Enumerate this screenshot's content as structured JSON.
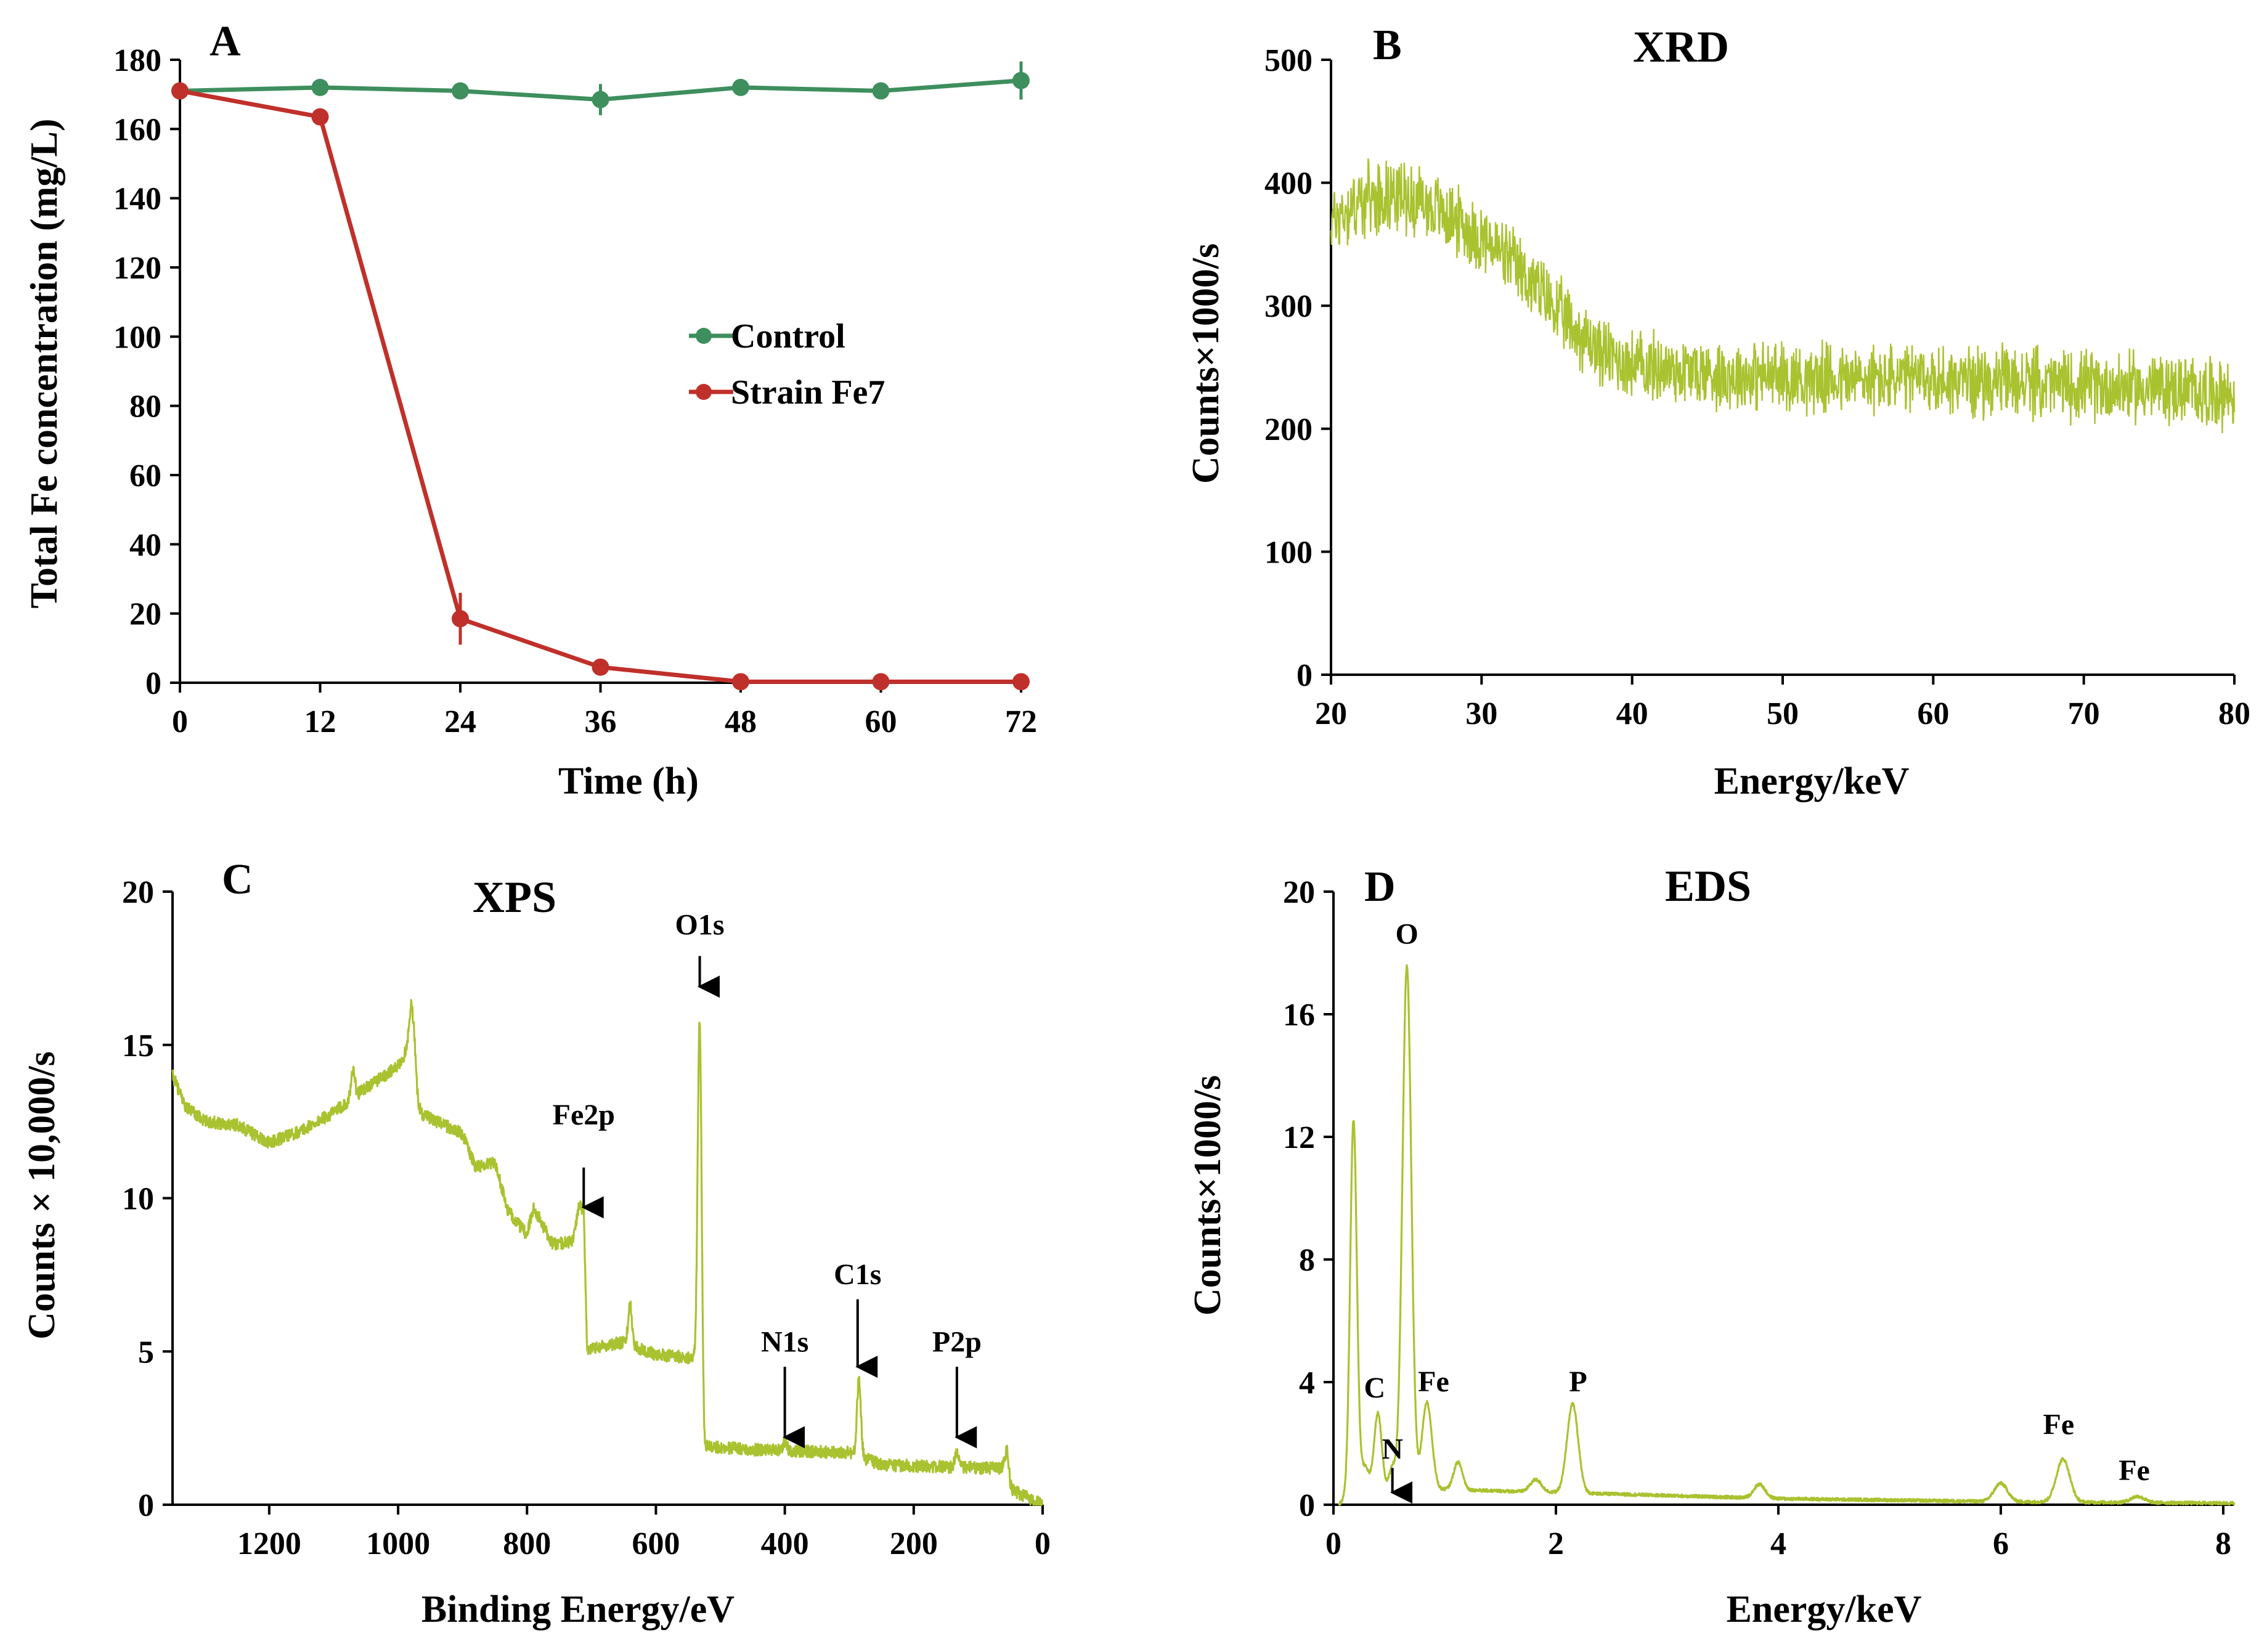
{
  "colors": {
    "control": "#3E8E5E",
    "strain": "#C0302A",
    "spectrum": "#A9C230",
    "axis": "#000000"
  },
  "chart_data": [
    {
      "panel": "A",
      "type": "line",
      "title": "",
      "xlabel": "Time (h)",
      "ylabel": "Total Fe concentration (mg/L)",
      "xlim": [
        0,
        72
      ],
      "ylim": [
        0,
        180
      ],
      "xticks": [
        0,
        12,
        24,
        36,
        48,
        60,
        72
      ],
      "yticks": [
        0,
        20,
        40,
        60,
        80,
        100,
        120,
        140,
        160,
        180
      ],
      "x": [
        0,
        12,
        24,
        36,
        48,
        60,
        72
      ],
      "series": [
        {
          "name": "Control",
          "values": [
            171,
            172,
            171,
            168.5,
            172,
            171,
            174
          ],
          "errors": [
            2,
            2,
            1.5,
            4.5,
            1.5,
            1.5,
            5.5
          ]
        },
        {
          "name": "Strain Fe7",
          "values": [
            171,
            163.5,
            18.5,
            4.5,
            0.3,
            0.3,
            0.3
          ],
          "errors": [
            2,
            1,
            7.5,
            1,
            0.3,
            0.3,
            0.3
          ]
        }
      ],
      "legend": "center-right"
    },
    {
      "panel": "B",
      "type": "line",
      "title": "XRD",
      "xlabel": "Energy/keV",
      "ylabel": "Counts×1000/s",
      "xlim": [
        20,
        80
      ],
      "ylim": [
        0,
        500
      ],
      "xticks": [
        20,
        30,
        40,
        50,
        60,
        70,
        80
      ],
      "yticks": [
        0,
        100,
        200,
        300,
        400,
        500
      ],
      "trend": [
        [
          20,
          370
        ],
        [
          22,
          385
        ],
        [
          24,
          392
        ],
        [
          26,
          385
        ],
        [
          28,
          372
        ],
        [
          30,
          355
        ],
        [
          32,
          335
        ],
        [
          34,
          310
        ],
        [
          36,
          282
        ],
        [
          38,
          262
        ],
        [
          40,
          252
        ],
        [
          45,
          245
        ],
        [
          50,
          242
        ],
        [
          55,
          240
        ],
        [
          60,
          240
        ],
        [
          65,
          238
        ],
        [
          70,
          235
        ],
        [
          75,
          233
        ],
        [
          80,
          228
        ]
      ],
      "noise": 28
    },
    {
      "panel": "C",
      "type": "line",
      "title": "XPS",
      "xlabel": "Binding Energy/eV",
      "ylabel": "Counts × 10,000/s",
      "xlim": [
        1350,
        0
      ],
      "ylim": [
        0,
        20
      ],
      "xticks": [
        1200,
        1000,
        800,
        600,
        400,
        200,
        0
      ],
      "yticks": [
        0,
        5,
        10,
        15,
        20
      ],
      "baseline": [
        [
          1350,
          14.0
        ],
        [
          1330,
          13.0
        ],
        [
          1300,
          12.5
        ],
        [
          1250,
          12.4
        ],
        [
          1200,
          11.8
        ],
        [
          1150,
          12.2
        ],
        [
          1100,
          12.8
        ],
        [
          1050,
          13.6
        ],
        [
          1000,
          14.3
        ],
        [
          980,
          15.0
        ],
        [
          970,
          12.8
        ],
        [
          900,
          12.1
        ],
        [
          880,
          11.0
        ],
        [
          850,
          11.2
        ],
        [
          830,
          9.6
        ],
        [
          800,
          8.8
        ],
        [
          790,
          9.7
        ],
        [
          760,
          8.5
        ],
        [
          720,
          8.6
        ],
        [
          712,
          9.6
        ],
        [
          707,
          5.1
        ],
        [
          650,
          5.3
        ],
        [
          600,
          4.9
        ],
        [
          550,
          4.8
        ],
        [
          535,
          4.7
        ],
        [
          525,
          1.9
        ],
        [
          450,
          1.8
        ],
        [
          300,
          1.7
        ],
        [
          250,
          1.3
        ],
        [
          100,
          1.2
        ],
        [
          60,
          1.2
        ],
        [
          50,
          0.5
        ],
        [
          20,
          0.2
        ],
        [
          0,
          0.0
        ]
      ],
      "peaks": [
        {
          "x": 977,
          "h": 1.6,
          "w": 5
        },
        {
          "x": 1070,
          "h": 0.9,
          "w": 3
        },
        {
          "x": 720,
          "h": 1.0,
          "w": 4
        },
        {
          "x": 640,
          "h": 1.3,
          "w": 3
        },
        {
          "x": 532,
          "h": 11.9,
          "w": 3
        },
        {
          "x": 400,
          "h": 0.3,
          "w": 3
        },
        {
          "x": 285,
          "h": 2.5,
          "w": 3
        },
        {
          "x": 133,
          "h": 0.6,
          "w": 3
        },
        {
          "x": 55,
          "h": 0.9,
          "w": 3
        }
      ],
      "noise": 0.2,
      "annotations": [
        {
          "text": "O1s",
          "x": 532,
          "arrow_from": 17.9,
          "arrow_to": 16.9,
          "text_y": 18.6
        },
        {
          "text": "Fe2p",
          "x": 712,
          "arrow_from": 11.0,
          "arrow_to": 9.7,
          "text_y": 12.4
        },
        {
          "text": "C1s",
          "x": 287,
          "arrow_from": 6.7,
          "arrow_to": 4.5,
          "text_y": 7.2
        },
        {
          "text": "N1s",
          "x": 400,
          "arrow_from": 4.5,
          "arrow_to": 2.2,
          "text_y": 5.0
        },
        {
          "text": "P2p",
          "x": 133,
          "arrow_from": 4.5,
          "arrow_to": 2.2,
          "text_y": 5.0
        }
      ]
    },
    {
      "panel": "D",
      "type": "line",
      "title": "EDS",
      "xlabel": "Energy/keV",
      "ylabel": "Counts×1000/s",
      "xlim": [
        0,
        8.1
      ],
      "ylim": [
        0,
        20
      ],
      "xticks": [
        0,
        2,
        4,
        6,
        8
      ],
      "yticks": [
        0,
        4,
        8,
        12,
        16,
        20
      ],
      "baseline": [
        [
          0.05,
          0
        ],
        [
          0.1,
          0.2
        ],
        [
          0.5,
          0.3
        ],
        [
          1.0,
          0.5
        ],
        [
          1.5,
          0.45
        ],
        [
          2.0,
          0.4
        ],
        [
          3.0,
          0.3
        ],
        [
          4.0,
          0.2
        ],
        [
          6.0,
          0.1
        ],
        [
          8.1,
          0.05
        ]
      ],
      "peaks": [
        {
          "x": 0.18,
          "h": 12.3,
          "w": 0.03
        },
        {
          "x": 0.28,
          "h": 1.0,
          "w": 0.04
        },
        {
          "x": 0.4,
          "h": 2.7,
          "w": 0.035
        },
        {
          "x": 0.53,
          "h": 0.9,
          "w": 0.035
        },
        {
          "x": 0.66,
          "h": 17.2,
          "w": 0.04
        },
        {
          "x": 0.84,
          "h": 2.9,
          "w": 0.045
        },
        {
          "x": 1.12,
          "h": 0.9,
          "w": 0.04
        },
        {
          "x": 1.82,
          "h": 0.4,
          "w": 0.05
        },
        {
          "x": 2.15,
          "h": 2.9,
          "w": 0.05
        },
        {
          "x": 3.83,
          "h": 0.45,
          "w": 0.05
        },
        {
          "x": 6.0,
          "h": 0.6,
          "w": 0.06
        },
        {
          "x": 6.56,
          "h": 1.4,
          "w": 0.06
        },
        {
          "x": 7.23,
          "h": 0.2,
          "w": 0.06
        }
      ],
      "noise": 0.05,
      "annotations": [
        {
          "text": "O",
          "x": 0.66,
          "text_y": 18.3
        },
        {
          "text": "C",
          "x": 0.37,
          "text_y": 3.5
        },
        {
          "text": "Fe",
          "x": 0.9,
          "text_y": 3.7
        },
        {
          "text": "N",
          "x": 0.53,
          "text_y": 1.5,
          "arrow_from": 1.2,
          "arrow_to": 0.4
        },
        {
          "text": "P",
          "x": 2.2,
          "text_y": 3.7
        },
        {
          "text": "Fe",
          "x": 6.52,
          "text_y": 2.3
        },
        {
          "text": "Fe",
          "x": 7.2,
          "text_y": 0.8
        }
      ]
    }
  ]
}
